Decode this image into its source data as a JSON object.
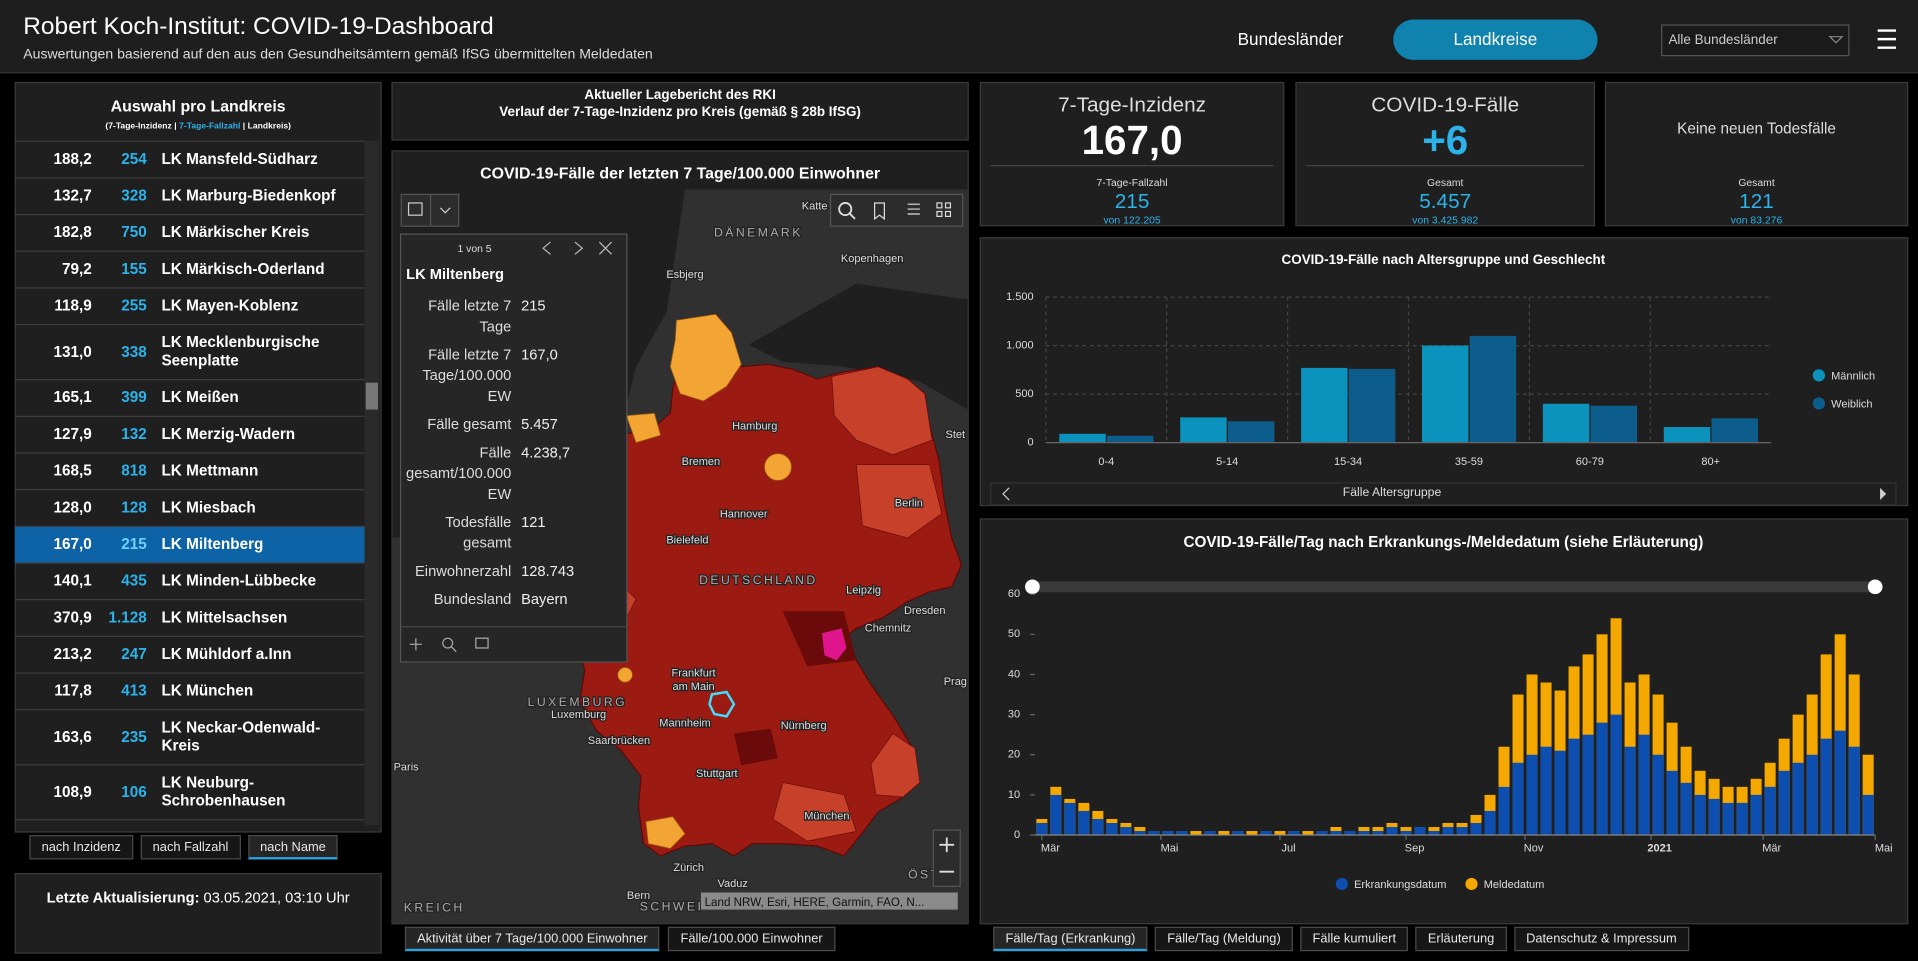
{
  "header": {
    "title": "Robert Koch-Institut: COVID-19-Dashboard",
    "subtitle": "Auswertungen basierend auf den aus den Gesundheitsämtern gemäß IfSG übermittelten Meldedaten",
    "nav": [
      "Bundesländer",
      "Landkreise"
    ],
    "active_nav": 1,
    "dropdown": "Alle Bundesländer"
  },
  "list": {
    "title": "Auswahl pro Landkreis",
    "legend": [
      "(7-Tage-Inzidenz",
      "|",
      "7-Tage-Fallzahl",
      "|",
      "Landkreis)"
    ],
    "rows": [
      [
        "188,2",
        "254",
        "LK Mansfeld-Südharz"
      ],
      [
        "132,7",
        "328",
        "LK Marburg-Biedenkopf"
      ],
      [
        "182,8",
        "750",
        "LK Märkischer Kreis"
      ],
      [
        "79,2",
        "155",
        "LK Märkisch-Oderland"
      ],
      [
        "118,9",
        "255",
        "LK Mayen-Koblenz"
      ],
      [
        "131,0",
        "338",
        "LK Mecklenburgische Seenplatte"
      ],
      [
        "165,1",
        "399",
        "LK Meißen"
      ],
      [
        "127,9",
        "132",
        "LK Merzig-Wadern"
      ],
      [
        "168,5",
        "818",
        "LK Mettmann"
      ],
      [
        "128,0",
        "128",
        "LK Miesbach"
      ],
      [
        "167,0",
        "215",
        "LK Miltenberg"
      ],
      [
        "140,1",
        "435",
        "LK Minden-Lübbecke"
      ],
      [
        "370,9",
        "1.128",
        "LK Mittelsachsen"
      ],
      [
        "213,2",
        "247",
        "LK Mühldorf a.Inn"
      ],
      [
        "117,8",
        "413",
        "LK München"
      ],
      [
        "163,6",
        "235",
        "LK Neckar-Odenwald-Kreis"
      ],
      [
        "108,9",
        "106",
        "LK Neuburg-Schrobenhausen"
      ]
    ],
    "selected": 10,
    "sort_tabs": [
      "nach Inzidenz",
      "nach Fallzahl",
      "nach Name"
    ],
    "active_sort": 2
  },
  "update": {
    "label": "Letzte Aktualisierung:",
    "value": "03.05.2021, 03:10 Uhr"
  },
  "report": {
    "line1": "Aktueller Lagebericht des RKI",
    "line2": "Verlauf der 7-Tage-Inzidenz pro Kreis (gemäß § 28b IfSG)"
  },
  "map": {
    "title": "COVID-19-Fälle der letzten 7 Tage/100.000 Einwohner",
    "labels": [
      "DÄNEMARK",
      "Katte",
      "Kopenhagen",
      "Esbjerg",
      "Hamburg",
      "Bremen",
      "Hannover",
      "Berlin",
      "Bielefeld",
      "DEUTSCHLAND",
      "Leipzig",
      "Dresden",
      "Chemnitz",
      "Frankfurt",
      "am Main",
      "Mannheim",
      "Nürnberg",
      "Stuttgart",
      "München",
      "Zürich",
      "Vaduz",
      "LUXEMBURG",
      "Luxemburg",
      "Saarbrücken",
      "Paris",
      "Prag",
      "Stet",
      "Bern",
      "SCHWEI",
      "KREICH",
      "ÖSTE"
    ],
    "attribution": "Land NRW, Esri, HERE, Garmin, FAO, N...",
    "popup": {
      "pager": "1 von 5",
      "title": "LK Miltenberg",
      "fields": [
        [
          "Fälle letzte 7 Tage",
          "215"
        ],
        [
          "Fälle letzte 7 Tage/100.000 EW",
          "167,0"
        ],
        [
          "Fälle gesamt",
          "5.457"
        ],
        [
          "Fälle gesamt/100.000 EW",
          "4.238,7"
        ],
        [
          "Todesfälle gesamt",
          "121"
        ],
        [
          "Einwohnerzahl",
          "128.743"
        ],
        [
          "Bundesland",
          "Bayern"
        ]
      ]
    },
    "tabs": [
      "Aktivität über 7 Tage/100.000 Einwohner",
      "Fälle/100.000 Einwohner"
    ],
    "active_tab": 0
  },
  "stats": [
    {
      "title": "7-Tage-Inzidenz",
      "value": "167,0",
      "sub_label": "7-Tage-Fallzahl",
      "sub_value": "215",
      "sub_total": "von 122.205"
    },
    {
      "title": "COVID-19-Fälle",
      "value": "+6",
      "sub_label": "Gesamt",
      "sub_value": "5.457",
      "sub_total": "von 3.425.982"
    },
    {
      "title": "Keine neuen Todesfälle",
      "sub_label": "Gesamt",
      "sub_value": "121",
      "sub_total": "von 83.276"
    }
  ],
  "chart_data": [
    {
      "type": "bar",
      "title": "COVID-19-Fälle nach Altersgruppe und Geschlecht",
      "x_label": "Fälle Altersgruppe",
      "categories": [
        "0-4",
        "5-14",
        "15-34",
        "35-59",
        "60-79",
        "80+"
      ],
      "series": [
        {
          "name": "Männlich",
          "color": "#0b93bd",
          "values": [
            90,
            260,
            770,
            1000,
            400,
            160
          ]
        },
        {
          "name": "Weiblich",
          "color": "#0d5d8c",
          "values": [
            70,
            220,
            760,
            1100,
            380,
            250
          ]
        }
      ],
      "ylim": [
        0,
        1500
      ],
      "yticks": [
        0,
        500,
        {
          "value": 1000,
          "label": "1.000"
        },
        {
          "value": 1500,
          "label": "1.500"
        }
      ],
      "grid": true,
      "legend": "right"
    },
    {
      "type": "bar",
      "title": "COVID-19-Fälle/Tag nach Erkrankungs-/Meldedatum (siehe Erläuterung)",
      "xlim": [
        0,
        60
      ],
      "xticks": [
        {
          "value": 0.5,
          "label": "Mär"
        },
        {
          "value": 9,
          "label": "Mai"
        },
        {
          "value": 17.5,
          "label": "Jul"
        },
        {
          "value": 26.5,
          "label": "Sep"
        },
        {
          "value": 35,
          "label": "Nov"
        },
        {
          "value": 44,
          "label": "2021"
        },
        {
          "value": 52,
          "label": "Mär"
        },
        {
          "value": 60,
          "label": "Mai"
        }
      ],
      "series": [
        {
          "name": "Erkrankungsdatum",
          "color": "#0c4fb0",
          "values": [
            3,
            10,
            8,
            6,
            4,
            3,
            2,
            1,
            1,
            1,
            1,
            0,
            1,
            0,
            1,
            0,
            1,
            0,
            1,
            0,
            1,
            1,
            1,
            1,
            1,
            2,
            1,
            2,
            1,
            2,
            2,
            3,
            6,
            12,
            18,
            20,
            22,
            21,
            24,
            25,
            28,
            30,
            22,
            25,
            20,
            16,
            13,
            10,
            9,
            8,
            8,
            10,
            12,
            16,
            18,
            20,
            24,
            26,
            22,
            10
          ]
        },
        {
          "name": "Meldedatum",
          "color": "#f5a800",
          "values": [
            4,
            12,
            9,
            8,
            6,
            4,
            3,
            2,
            1,
            1,
            1,
            1,
            1,
            1,
            1,
            1,
            1,
            1,
            1,
            1,
            1,
            2,
            1,
            2,
            2,
            3,
            2,
            2,
            2,
            3,
            3,
            5,
            10,
            22,
            35,
            40,
            38,
            36,
            42,
            45,
            50,
            54,
            38,
            40,
            35,
            28,
            22,
            16,
            14,
            12,
            12,
            14,
            18,
            24,
            30,
            35,
            45,
            50,
            40,
            20
          ]
        }
      ],
      "ylim": [
        0,
        60
      ],
      "yticks": [
        0,
        10,
        20,
        30,
        40,
        50,
        60
      ],
      "grid": false,
      "legend": "bottom"
    }
  ],
  "right_tabs": [
    "Fälle/Tag (Erkrankung)",
    "Fälle/Tag (Meldung)",
    "Fälle kumuliert",
    "Erläuterung",
    "Datenschutz & Impressum"
  ],
  "active_right_tab": 0
}
